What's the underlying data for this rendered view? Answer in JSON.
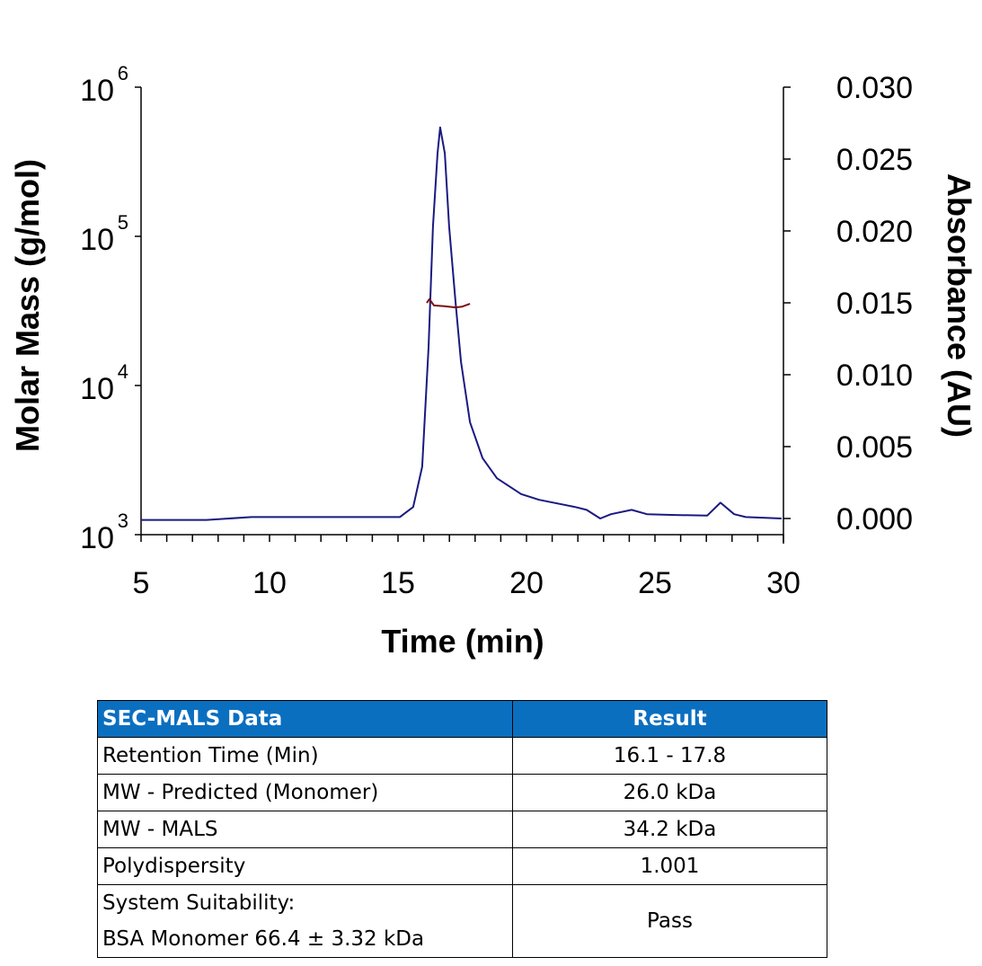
{
  "chart_data": {
    "type": "line",
    "xlabel": "Time (min)",
    "ylabel": "Molar Mass (g/mol)",
    "y2label": "Absorbance (AU)",
    "xlim": [
      5,
      30
    ],
    "ylim": [
      1000,
      1000000
    ],
    "yscale": "log",
    "y2lim": [
      0,
      0.03
    ],
    "grid": false,
    "x_ticks": [
      "5",
      "10",
      "15",
      "20",
      "25",
      "30"
    ],
    "y_ticks": [
      {
        "base": "10",
        "exp": "3"
      },
      {
        "base": "10",
        "exp": "4"
      },
      {
        "base": "10",
        "exp": "5"
      },
      {
        "base": "10",
        "exp": "6"
      }
    ],
    "y2_ticks": [
      "0.000",
      "0.005",
      "0.010",
      "0.015",
      "0.020",
      "0.025",
      "0.030"
    ],
    "series": [
      {
        "axis": "right",
        "color": "#1A1A80",
        "x": [
          5,
          7.55,
          9.3,
          15.07,
          15.59,
          15.94,
          16.19,
          16.36,
          16.54,
          16.64,
          16.82,
          16.99,
          17.24,
          17.45,
          17.8,
          18.29,
          18.85,
          19.79,
          20.49,
          21.89,
          22.34,
          22.87,
          23.29,
          24.09,
          24.69,
          25.63,
          27.03,
          27.55,
          28.08,
          28.53,
          29.93
        ],
        "y": [
          -0.0001,
          -0.0001,
          0.0001,
          0.0001,
          0.0008,
          0.0036,
          0.0119,
          0.0203,
          0.0254,
          0.0272,
          0.0254,
          0.0203,
          0.015,
          0.0109,
          0.0067,
          0.0042,
          0.0028,
          0.0017,
          0.0013,
          0.0008,
          0.0006,
          0.0,
          0.0003,
          0.0006,
          0.0003,
          0.00025,
          0.0002,
          0.0011,
          0.0003,
          0.0001,
          0.0
        ]
      },
      {
        "axis": "left",
        "color": "#7A1010",
        "x": [
          16.12,
          16.22,
          16.4,
          16.8,
          17.24,
          17.5,
          17.8
        ],
        "y": [
          35800,
          37900,
          34400,
          34000,
          33400,
          33800,
          35300
        ]
      }
    ]
  },
  "table": {
    "headers": [
      "SEC-MALS Data",
      "Result"
    ],
    "rows": [
      [
        "Retention Time (Min)",
        "16.1 - 17.8"
      ],
      [
        "MW - Predicted (Monomer)",
        "26.0 kDa"
      ],
      [
        "MW - MALS",
        "34.2 kDa"
      ],
      [
        "Polydispersity",
        "1.001"
      ]
    ],
    "last_row": {
      "line1": "System Suitability:",
      "line2": "BSA Monomer 66.4 ± 3.32 kDa",
      "value": "Pass"
    }
  }
}
